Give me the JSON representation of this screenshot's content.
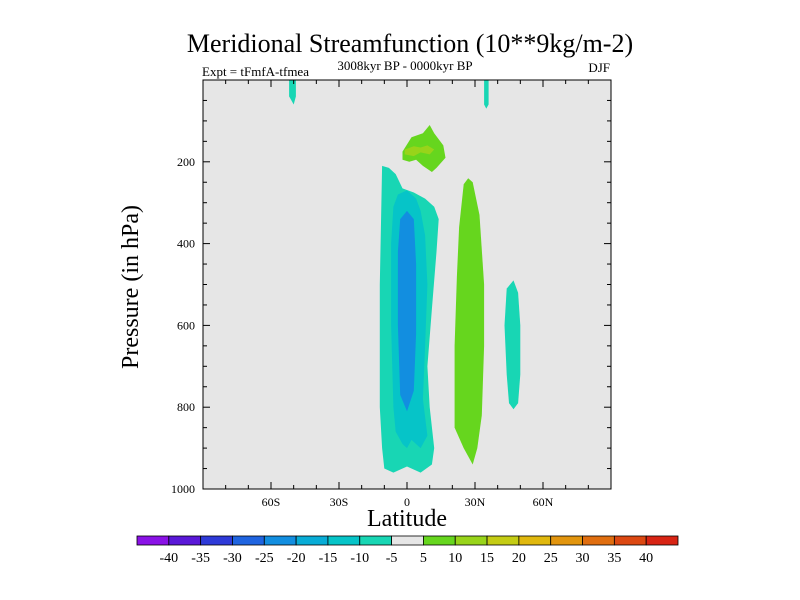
{
  "chart_data": {
    "type": "contour",
    "title": "Meridional Streamfunction (10**9kg/m-2)",
    "subtitle_left": "Expt = tFmfA-tfmea",
    "subtitle_center": "3008kyr BP - 0000kyr BP",
    "subtitle_right": "DJF",
    "xlabel": "Latitude",
    "ylabel": "Pressure (in hPa)",
    "xlim": [
      -90,
      90
    ],
    "ylim": [
      1000,
      0
    ],
    "x_ticks": [
      {
        "value": -60,
        "label": "60S"
      },
      {
        "value": -30,
        "label": "30S"
      },
      {
        "value": 0,
        "label": "0"
      },
      {
        "value": 30,
        "label": "30N"
      },
      {
        "value": 60,
        "label": "60N"
      }
    ],
    "y_ticks": [
      {
        "value": 200,
        "label": "200"
      },
      {
        "value": 400,
        "label": "400"
      },
      {
        "value": 600,
        "label": "600"
      },
      {
        "value": 800,
        "label": "800"
      },
      {
        "value": 1000,
        "label": "1000"
      }
    ],
    "background_color": "#e6e6e6",
    "colorbar": {
      "labels": [
        "-40",
        "-35",
        "-30",
        "-25",
        "-20",
        "-15",
        "-10",
        "-5",
        "5",
        "10",
        "15",
        "20",
        "25",
        "30",
        "35",
        "40"
      ],
      "colors": [
        "#8a12e6",
        "#5a18d8",
        "#2e3ad8",
        "#1f64e0",
        "#128ee0",
        "#08acd6",
        "#06c4c8",
        "#18d6b4",
        "#e6e6e6",
        "#66d61e",
        "#98d41a",
        "#c4cc14",
        "#e0b80e",
        "#e2950e",
        "#e06e10",
        "#dc4812",
        "#d82414"
      ]
    },
    "regions": [
      {
        "value": "-10..-5",
        "color": "#18d6b4",
        "polygon": [
          [
            -52,
            0
          ],
          [
            -49,
            0
          ],
          [
            -49,
            40
          ],
          [
            -50,
            60
          ],
          [
            -52,
            40
          ]
        ]
      },
      {
        "value": "-10..-5",
        "color": "#18d6b4",
        "polygon": [
          [
            34,
            0
          ],
          [
            36,
            0
          ],
          [
            36,
            60
          ],
          [
            35,
            70
          ],
          [
            34,
            60
          ]
        ]
      },
      {
        "value": "-10..-5",
        "color": "#18d6b4",
        "polygon": [
          [
            -11,
            210
          ],
          [
            -8,
            215
          ],
          [
            -5,
            230
          ],
          [
            -2,
            265
          ],
          [
            3,
            275
          ],
          [
            8,
            290
          ],
          [
            12,
            310
          ],
          [
            14,
            340
          ],
          [
            13,
            420
          ],
          [
            11,
            560
          ],
          [
            9,
            700
          ],
          [
            10,
            800
          ],
          [
            12,
            900
          ],
          [
            11,
            940
          ],
          [
            6,
            960
          ],
          [
            0,
            945
          ],
          [
            -6,
            960
          ],
          [
            -10,
            950
          ],
          [
            -11,
            900
          ],
          [
            -12,
            800
          ],
          [
            -12,
            500
          ]
        ]
      },
      {
        "value": "-15..-10",
        "color": "#06c4c8",
        "polygon": [
          [
            -4,
            280
          ],
          [
            0,
            270
          ],
          [
            4,
            290
          ],
          [
            6,
            320
          ],
          [
            8,
            380
          ],
          [
            9,
            500
          ],
          [
            8,
            650
          ],
          [
            7,
            780
          ],
          [
            9,
            870
          ],
          [
            6,
            900
          ],
          [
            2,
            880
          ],
          [
            0,
            900
          ],
          [
            -2,
            890
          ],
          [
            -5,
            860
          ],
          [
            -6,
            800
          ],
          [
            -7,
            600
          ],
          [
            -7,
            400
          ],
          [
            -6,
            310
          ]
        ]
      },
      {
        "value": "-20..-15",
        "color": "#128ee0",
        "polygon": [
          [
            -3,
            340
          ],
          [
            0,
            320
          ],
          [
            3,
            340
          ],
          [
            4,
            450
          ],
          [
            4,
            620
          ],
          [
            3,
            760
          ],
          [
            0,
            810
          ],
          [
            -3,
            770
          ],
          [
            -4,
            600
          ],
          [
            -4,
            420
          ]
        ]
      },
      {
        "value": "5..10",
        "color": "#66d61e",
        "polygon": [
          [
            -2,
            175
          ],
          [
            2,
            140
          ],
          [
            7,
            130
          ],
          [
            10,
            110
          ],
          [
            12,
            130
          ],
          [
            16,
            160
          ],
          [
            17,
            190
          ],
          [
            13,
            215
          ],
          [
            11,
            225
          ],
          [
            7,
            210
          ],
          [
            4,
            195
          ],
          [
            1,
            200
          ],
          [
            -2,
            195
          ]
        ]
      },
      {
        "value": "10..15",
        "color": "#98d41a",
        "polygon": [
          [
            -1,
            170
          ],
          [
            3,
            162
          ],
          [
            6,
            165
          ],
          [
            9,
            160
          ],
          [
            12,
            170
          ],
          [
            10,
            182
          ],
          [
            6,
            177
          ],
          [
            3,
            186
          ],
          [
            -1,
            182
          ]
        ]
      },
      {
        "value": "5..10",
        "color": "#66d61e",
        "polygon": [
          [
            25,
            255
          ],
          [
            27,
            240
          ],
          [
            29,
            250
          ],
          [
            32,
            330
          ],
          [
            34,
            500
          ],
          [
            34,
            650
          ],
          [
            33,
            820
          ],
          [
            31,
            900
          ],
          [
            29,
            940
          ],
          [
            25,
            900
          ],
          [
            21,
            850
          ],
          [
            21,
            650
          ],
          [
            22,
            480
          ],
          [
            23,
            360
          ]
        ]
      },
      {
        "value": "-10..-5",
        "color": "#18d6b4",
        "polygon": [
          [
            44,
            510
          ],
          [
            47,
            490
          ],
          [
            49,
            520
          ],
          [
            50,
            600
          ],
          [
            50,
            720
          ],
          [
            49,
            790
          ],
          [
            47,
            805
          ],
          [
            45,
            790
          ],
          [
            44,
            720
          ],
          [
            43,
            600
          ]
        ]
      }
    ]
  }
}
